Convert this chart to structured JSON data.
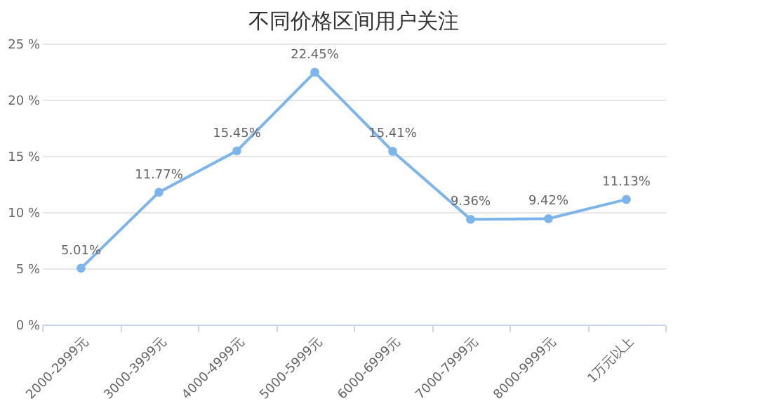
{
  "chart_data": {
    "type": "line",
    "title": "不同价格区间用户关注",
    "categories": [
      "2000-2999元",
      "3000-3999元",
      "4000-4999元",
      "5000-5999元",
      "6000-6999元",
      "7000-7999元",
      "8000-9999元",
      "1万元以上"
    ],
    "series": [
      {
        "color": "#7cb5ec",
        "values": [
          5.01,
          11.77,
          15.45,
          22.45,
          15.41,
          9.36,
          9.42,
          11.13
        ],
        "value_labels": [
          "5.01%",
          "11.77%",
          "15.45%",
          "22.45%",
          "15.41%",
          "9.36%",
          "9.42%",
          "11.13%"
        ]
      }
    ],
    "ylim": [
      0,
      25
    ],
    "yticks": [
      {
        "value": 0,
        "label": "0 %"
      },
      {
        "value": 5,
        "label": "5 %"
      },
      {
        "value": 10,
        "label": "10 %"
      },
      {
        "value": 15,
        "label": "15 %"
      },
      {
        "value": 20,
        "label": "20 %"
      },
      {
        "value": 25,
        "label": "25 %"
      }
    ],
    "grid": "y",
    "marker": "circle",
    "line_style": "solid"
  }
}
